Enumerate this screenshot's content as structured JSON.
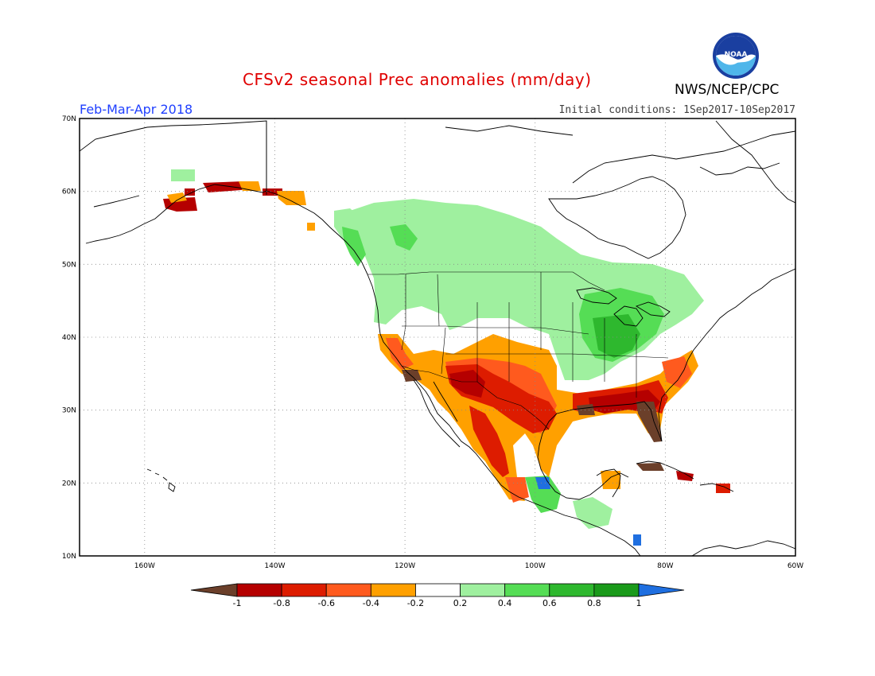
{
  "header": {
    "title": "CFSv2 seasonal Prec anomalies (mm/day)",
    "period": "Feb-Mar-Apr 2018",
    "initial_conditions": "Initial conditions: 1Sep2017-10Sep2017",
    "agency": "NWS/NCEP/CPC",
    "logo_text": "NOAA"
  },
  "map": {
    "lat_labels": [
      "70N",
      "60N",
      "50N",
      "40N",
      "30N",
      "20N",
      "10N"
    ],
    "lon_labels": [
      "160W",
      "140W",
      "120W",
      "100W",
      "80W",
      "60W"
    ],
    "grid": "dotted",
    "lon_range": [
      -170,
      -60
    ],
    "lat_range": [
      10,
      70
    ]
  },
  "colorbar": {
    "labels": [
      "-1",
      "-0.8",
      "-0.6",
      "-0.4",
      "-0.2",
      "0.2",
      "0.4",
      "0.6",
      "0.8",
      "1"
    ],
    "colors": {
      "lt_m1": "#6b3f2a",
      "m1_m08": "#b50000",
      "m08_m06": "#dd1c00",
      "m06_m04": "#ff5a1e",
      "m04_m02": "#ffa000",
      "m02_02": "#ffffff",
      "p02_p04": "#9ff09f",
      "p04_p06": "#55dd55",
      "p06_p08": "#2eb82e",
      "p08_p1": "#1a9a1a",
      "gt_p1": "#1f6fe0"
    }
  }
}
